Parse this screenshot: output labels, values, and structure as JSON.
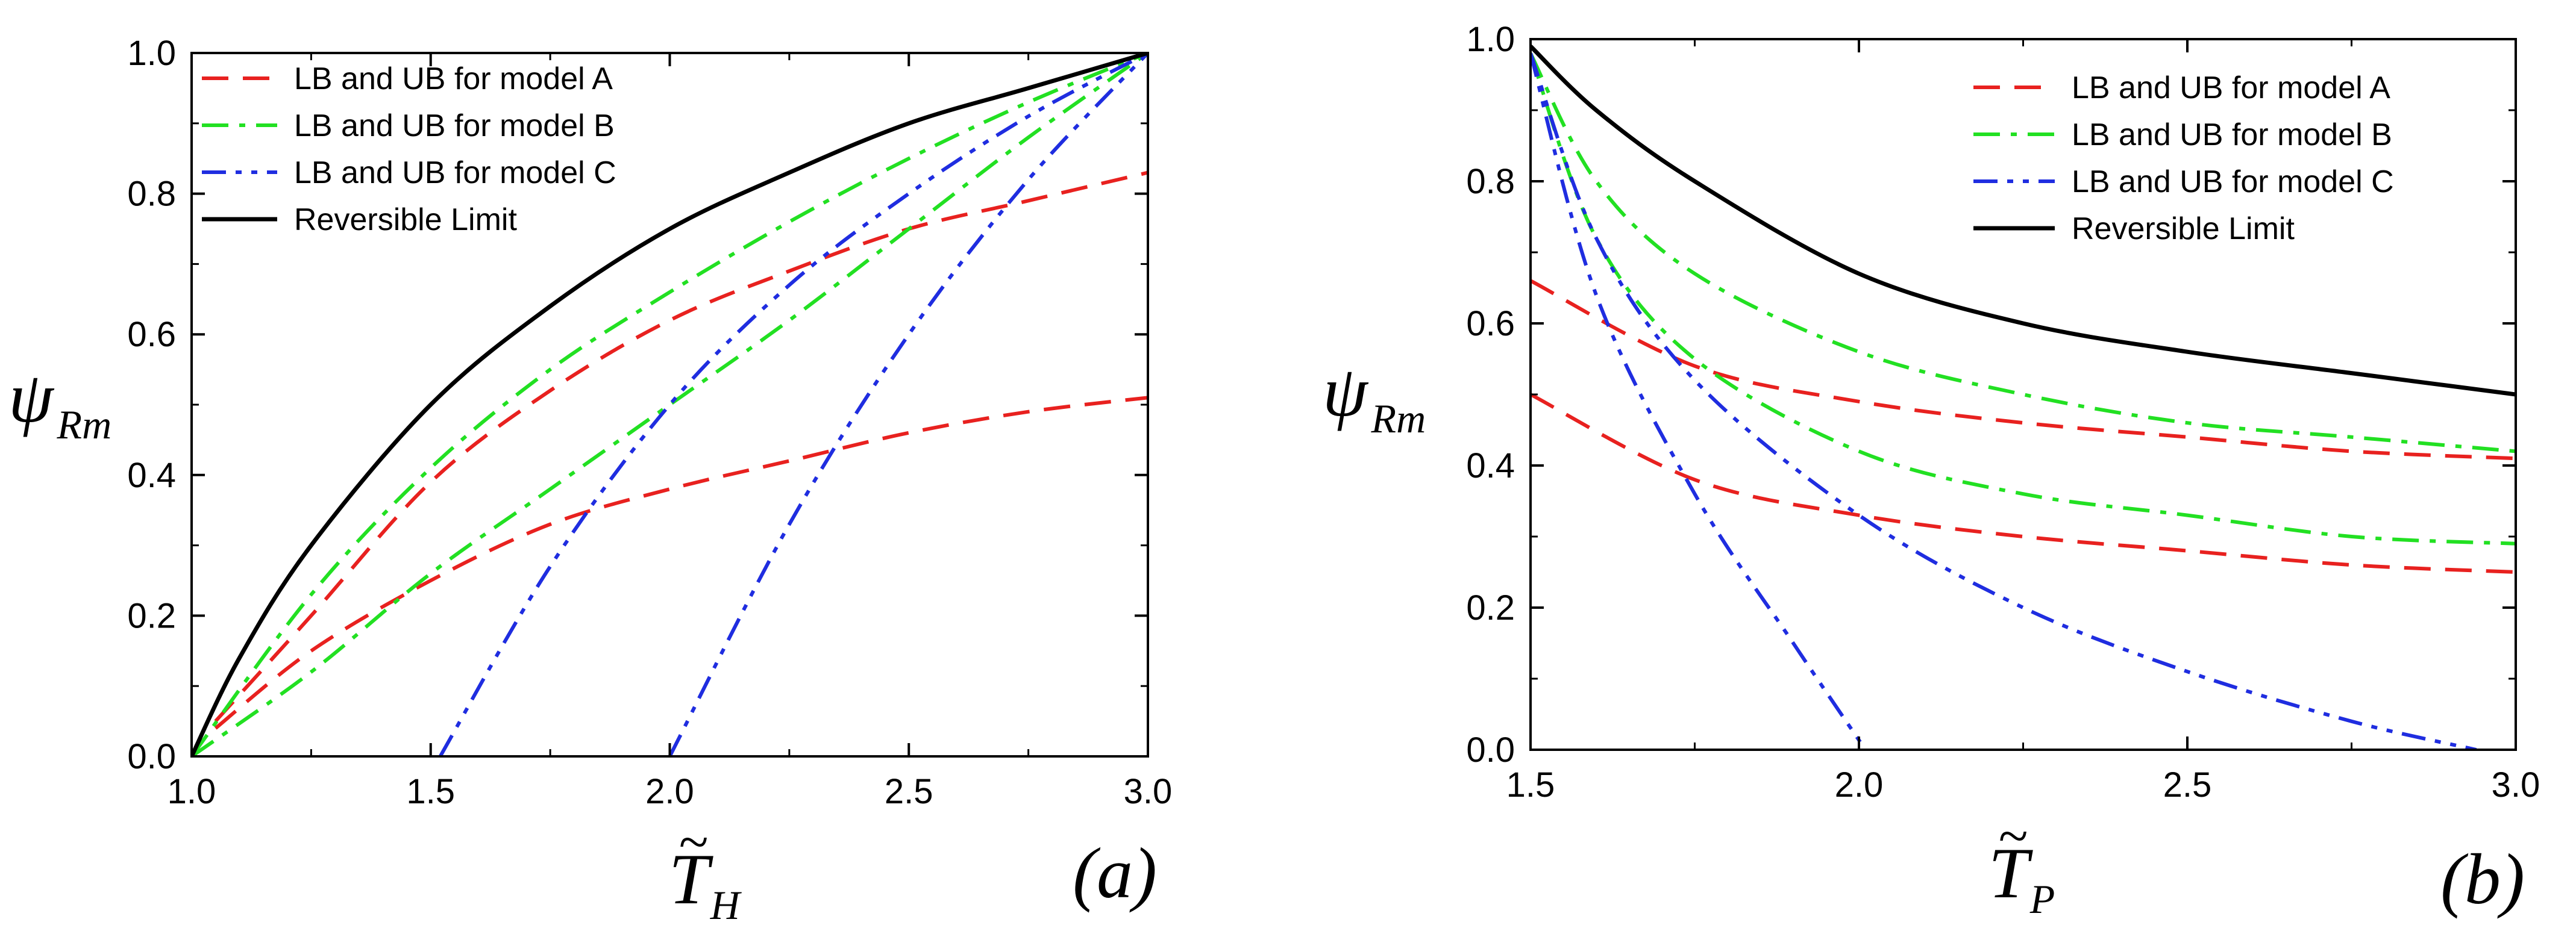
{
  "chart_data": [
    {
      "type": "line",
      "panel_label": "(a)",
      "xlabel": {
        "symbol": "T",
        "accent": "~",
        "subscript": "H"
      },
      "ylabel": {
        "symbol": "ψ",
        "subscript": "Rm"
      },
      "xlim": [
        1.0,
        3.0
      ],
      "ylim": [
        0.0,
        1.0
      ],
      "xticks": [
        "1.0",
        "1.5",
        "2.0",
        "2.5",
        "3.0"
      ],
      "yticks": [
        "0.0",
        "0.2",
        "0.4",
        "0.6",
        "0.8",
        "1.0"
      ],
      "legend_position": "top-left",
      "legend": [
        {
          "label": "LB and UB for model A",
          "color": "#e8211f",
          "dash": "dash"
        },
        {
          "label": "LB and UB for model B",
          "color": "#22e022",
          "dash": "dashdot"
        },
        {
          "label": "LB and UB for model C",
          "color": "#1f2de0",
          "dash": "dashdotdot"
        },
        {
          "label": "Reversible Limit",
          "color": "#000000",
          "dash": "solid"
        }
      ],
      "series": [
        {
          "name": "Model A UB",
          "group": 0,
          "x": [
            1.05,
            1.25,
            1.5,
            1.75,
            2.0,
            2.25,
            2.5,
            2.75,
            3.0
          ],
          "y": [
            0.05,
            0.2,
            0.39,
            0.52,
            0.62,
            0.69,
            0.75,
            0.79,
            0.83
          ]
        },
        {
          "name": "Model A LB",
          "group": 0,
          "x": [
            1.05,
            1.25,
            1.5,
            1.75,
            2.0,
            2.25,
            2.5,
            2.75,
            3.0
          ],
          "y": [
            0.04,
            0.15,
            0.25,
            0.33,
            0.38,
            0.42,
            0.46,
            0.49,
            0.51
          ]
        },
        {
          "name": "Model B UB",
          "group": 1,
          "x": [
            1.0,
            1.25,
            1.5,
            1.75,
            2.0,
            2.25,
            2.5,
            2.75,
            3.0
          ],
          "y": [
            0.0,
            0.23,
            0.41,
            0.55,
            0.66,
            0.76,
            0.85,
            0.93,
            1.0
          ]
        },
        {
          "name": "Model B LB",
          "group": 1,
          "x": [
            1.0,
            1.25,
            1.5,
            1.75,
            2.0,
            2.25,
            2.5,
            2.75,
            3.0
          ],
          "y": [
            0.0,
            0.12,
            0.26,
            0.38,
            0.5,
            0.62,
            0.75,
            0.88,
            1.0
          ]
        },
        {
          "name": "Model C UB",
          "group": 2,
          "x": [
            1.52,
            1.75,
            2.0,
            2.25,
            2.5,
            2.75,
            3.0
          ],
          "y": [
            0.0,
            0.27,
            0.5,
            0.67,
            0.8,
            0.91,
            1.0
          ]
        },
        {
          "name": "Model C LB",
          "group": 2,
          "x": [
            2.0,
            2.25,
            2.5,
            2.75,
            3.0
          ],
          "y": [
            0.0,
            0.33,
            0.6,
            0.82,
            1.0
          ]
        },
        {
          "name": "Reversible Limit",
          "group": 3,
          "x": [
            1.0,
            1.1,
            1.25,
            1.5,
            1.75,
            2.0,
            2.25,
            2.5,
            2.75,
            3.0
          ],
          "y": [
            0.0,
            0.14,
            0.3,
            0.5,
            0.64,
            0.75,
            0.83,
            0.9,
            0.95,
            1.0
          ]
        }
      ]
    },
    {
      "type": "line",
      "panel_label": "(b)",
      "xlabel": {
        "symbol": "T",
        "accent": "~",
        "subscript": "P"
      },
      "ylabel": {
        "symbol": "ψ",
        "subscript": "Rm"
      },
      "xlim": [
        1.5,
        3.0
      ],
      "ylim": [
        0.0,
        1.0
      ],
      "xticks": [
        "1.5",
        "2.0",
        "2.5",
        "3.0"
      ],
      "yticks": [
        "0.0",
        "0.2",
        "0.4",
        "0.6",
        "0.8",
        "1.0"
      ],
      "legend_position": "top-right",
      "legend": [
        {
          "label": "LB and UB for model A",
          "color": "#e8211f",
          "dash": "dash"
        },
        {
          "label": "LB and UB for model B",
          "color": "#22e022",
          "dash": "dashdot"
        },
        {
          "label": "LB and UB for model C",
          "color": "#1f2de0",
          "dash": "dashdotdot"
        },
        {
          "label": "Reversible Limit",
          "color": "#000000",
          "dash": "solid"
        }
      ],
      "series": [
        {
          "name": "Model A UB",
          "group": 0,
          "x": [
            1.5,
            1.75,
            2.0,
            2.25,
            2.5,
            2.75,
            3.0
          ],
          "y": [
            0.66,
            0.54,
            0.49,
            0.46,
            0.44,
            0.42,
            0.41
          ]
        },
        {
          "name": "Model A LB",
          "group": 0,
          "x": [
            1.5,
            1.75,
            2.0,
            2.25,
            2.5,
            2.75,
            3.0
          ],
          "y": [
            0.5,
            0.38,
            0.33,
            0.3,
            0.28,
            0.26,
            0.25
          ]
        },
        {
          "name": "Model B UB",
          "group": 1,
          "x": [
            1.5,
            1.6,
            1.75,
            2.0,
            2.25,
            2.5,
            2.75,
            3.0
          ],
          "y": [
            0.98,
            0.8,
            0.67,
            0.56,
            0.5,
            0.46,
            0.44,
            0.42
          ]
        },
        {
          "name": "Model B LB",
          "group": 1,
          "x": [
            1.5,
            1.6,
            1.75,
            2.0,
            2.25,
            2.5,
            2.75,
            3.0
          ],
          "y": [
            0.98,
            0.72,
            0.55,
            0.42,
            0.36,
            0.33,
            0.3,
            0.29
          ]
        },
        {
          "name": "Model C UB",
          "group": 2,
          "x": [
            1.5,
            1.6,
            1.75,
            2.0,
            2.25,
            2.5,
            2.75,
            2.94
          ],
          "y": [
            0.98,
            0.72,
            0.52,
            0.33,
            0.2,
            0.11,
            0.04,
            0.0
          ]
        },
        {
          "name": "Model C LB",
          "group": 2,
          "x": [
            1.5,
            1.6,
            1.75,
            1.9,
            2.01
          ],
          "y": [
            0.98,
            0.64,
            0.36,
            0.15,
            0.0
          ]
        },
        {
          "name": "Reversible Limit",
          "group": 3,
          "x": [
            1.5,
            1.6,
            1.75,
            2.0,
            2.25,
            2.5,
            2.75,
            3.0
          ],
          "y": [
            0.99,
            0.9,
            0.8,
            0.67,
            0.6,
            0.56,
            0.53,
            0.5
          ]
        }
      ]
    }
  ]
}
